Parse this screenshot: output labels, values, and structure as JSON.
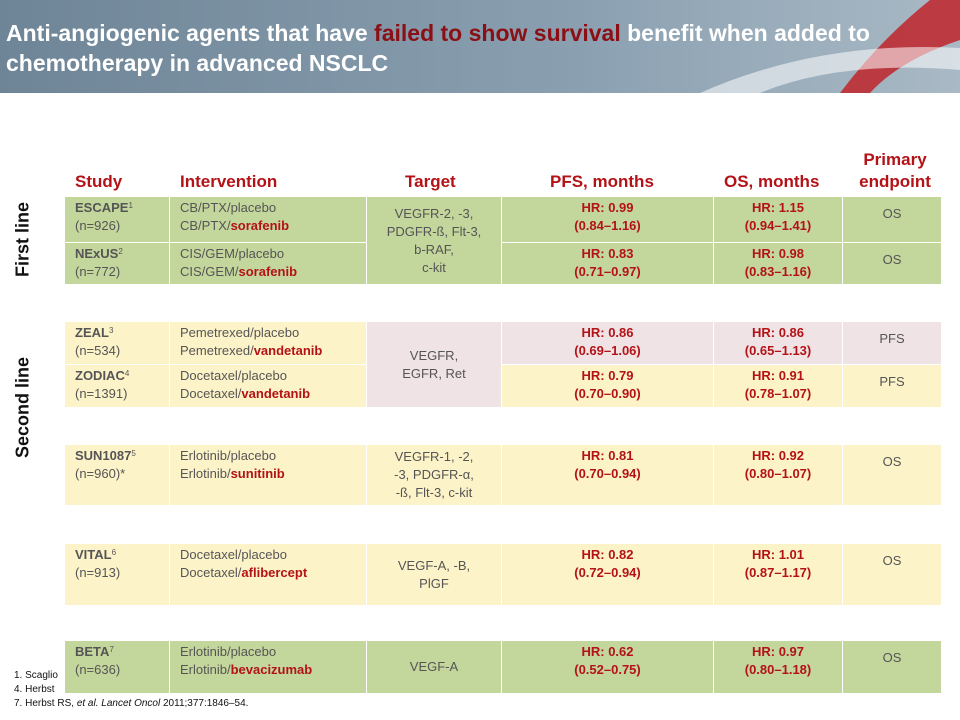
{
  "title": {
    "part1": "Anti-angiogenic agents that have ",
    "highlight": "failed to show survival",
    "part2": " benefit when added to chemotherapy in advanced NSCLC"
  },
  "columns": {
    "study": "Study",
    "intervention": "Intervention",
    "target": "Target",
    "pfs": "PFS, months",
    "os": "OS, months",
    "endpoint_line1": "Primary",
    "endpoint_line2": "endpoint"
  },
  "sections": {
    "first_line": "First line",
    "second_line": "Second line"
  },
  "rows": [
    {
      "name": "ESCAPE",
      "sup": "1",
      "n": "(n=926)",
      "int1": "CB/PTX/placebo",
      "int2_prefix": "CB/PTX/",
      "drug": "sorafenib",
      "pfs1": "HR: 0.99",
      "pfs2": "(0.84–1.16)",
      "os1": "HR: 1.15",
      "os2": "(0.94–1.41)",
      "ep": "OS"
    },
    {
      "name": "NExUS",
      "sup": "2",
      "n": "(n=772)",
      "int1": "CIS/GEM/placebo",
      "int2_prefix": "CIS/GEM/",
      "drug": "sorafenib",
      "pfs1": "HR: 0.83",
      "pfs2": "(0.71–0.97)",
      "os1": "HR: 0.98",
      "os2": "(0.83–1.16)",
      "ep": "OS"
    },
    {
      "name": "ZEAL",
      "sup": "3",
      "n": "(n=534)",
      "int1": "Pemetrexed/placebo",
      "int2_prefix": "Pemetrexed/",
      "drug": "vandetanib",
      "pfs1": "HR: 0.86",
      "pfs2": "(0.69–1.06)",
      "os1": "HR: 0.86",
      "os2": "(0.65–1.13)",
      "ep": "PFS"
    },
    {
      "name": "ZODIAC",
      "sup": "4",
      "n": "(n=1391)",
      "int1": "Docetaxel/placebo",
      "int2_prefix": "Docetaxel/",
      "drug": "vandetanib",
      "pfs1": "HR: 0.79",
      "pfs2": "(0.70–0.90)",
      "os1": "HR: 0.91",
      "os2": "(0.78–1.07)",
      "ep": "PFS"
    },
    {
      "name": "SUN1087",
      "sup": "5",
      "n": "(n=960)*",
      "int1": "Erlotinib/placebo",
      "int2_prefix": "Erlotinib/",
      "drug": "sunitinib",
      "pfs1": "HR: 0.81",
      "pfs2": "(0.70–0.94)",
      "os1": "HR: 0.92",
      "os2": "(0.80–1.07)",
      "ep": "OS"
    },
    {
      "name": "VITAL",
      "sup": "6",
      "n": "(n=913)",
      "int1": "Docetaxel/placebo",
      "int2_prefix": "Docetaxel/",
      "drug": "aflibercept",
      "pfs1": "HR: 0.82",
      "pfs2": "(0.72–0.94)",
      "os1": "HR: 1.01",
      "os2": "(0.87–1.17)",
      "ep": "OS"
    },
    {
      "name": "BETA",
      "sup": "7",
      "n": "(n=636)",
      "int1": "Erlotinib/placebo",
      "int2_prefix": "Erlotinib/",
      "drug": "bevacizumab",
      "pfs1": "HR: 0.62",
      "pfs2": "(0.52–0.75)",
      "os1": "HR: 0.97",
      "os2": "(0.80–1.18)",
      "ep": "OS"
    }
  ],
  "targets": {
    "sorafenib": [
      "VEGFR-2, -3,",
      "PDGFR-ß, Flt-3,",
      "b-RAF,",
      "c-kit"
    ],
    "vandetanib": [
      "VEGFR,",
      "EGFR, Ret"
    ],
    "sunitinib": [
      "VEGFR-1, -2,",
      "-3, PDGFR-α,",
      "-ß, Flt-3, c-kit"
    ],
    "aflibercept": [
      "VEGF-A, -B,",
      "PlGF"
    ],
    "bevacizumab": [
      "VEGF-A"
    ]
  },
  "footnotes": {
    "f1": "1. Scaglio",
    "f4": "4. Herbst",
    "f7_authors": "7. Herbst RS, ",
    "f7_etal": "et al.",
    "f7_journal": " Lancet Oncol",
    "f7_rest": " 2011;377:1846–54."
  },
  "colors": {
    "green": "#c3d69b",
    "yellow": "#fdf3c9",
    "pink": "#efe3e6",
    "accent": "#b31217",
    "header": "#7d94a6"
  }
}
